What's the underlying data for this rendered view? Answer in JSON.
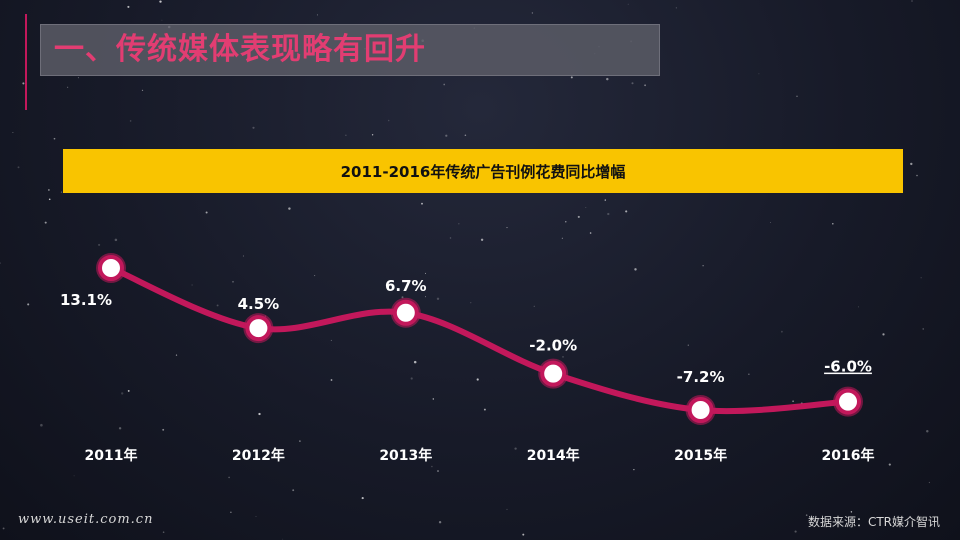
{
  "page": {
    "title": "一、传统媒体表现略有回升",
    "website": "www.useit.com.cn",
    "source": "数据来源：CTR媒介智讯"
  },
  "colors": {
    "line": "#c2185b",
    "marker_fill": "#ffffff",
    "banner": "#f9c400",
    "title_text": "#e23d72"
  },
  "chart_data": {
    "type": "line",
    "title": "2011-2016年传统广告刊例花费同比增幅",
    "categories": [
      "2011年",
      "2012年",
      "2013年",
      "2014年",
      "2015年",
      "2016年"
    ],
    "values": [
      13.1,
      4.5,
      6.7,
      -2.0,
      -7.2,
      -6.0
    ],
    "data_labels": [
      "13.1%",
      "4.5%",
      "6.7%",
      "-2.0%",
      "-7.2%",
      "-6.0%"
    ],
    "ylim": [
      -9,
      15
    ],
    "grid": false,
    "legend": "none"
  }
}
